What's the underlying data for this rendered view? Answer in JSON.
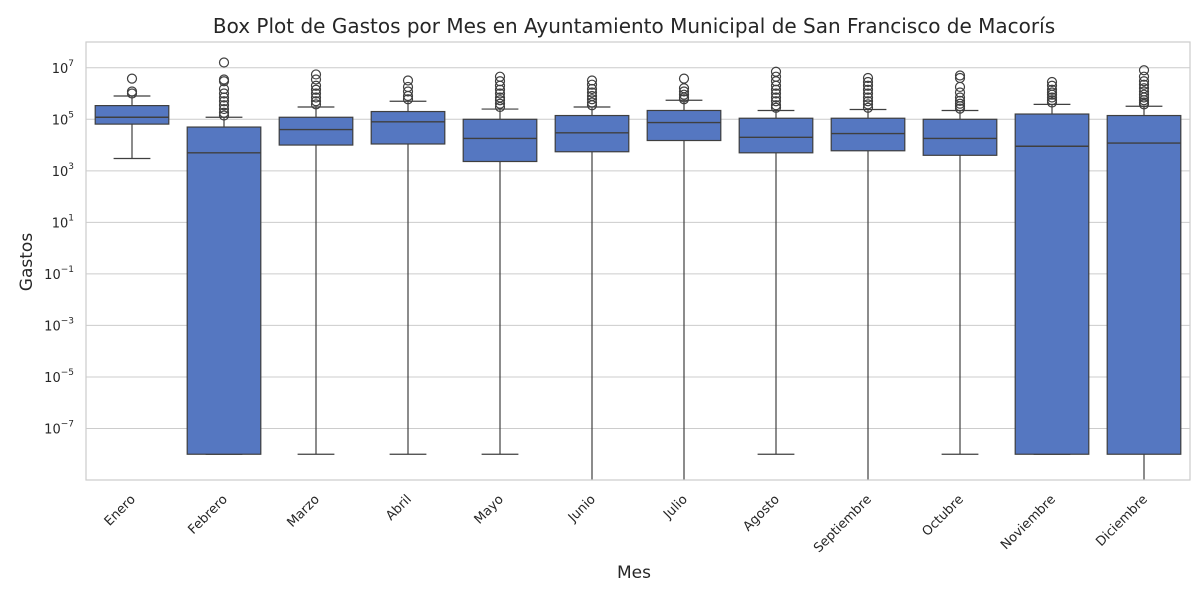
{
  "chart_data": {
    "type": "box",
    "title": "Box Plot de Gastos por Mes en Ayuntamiento Municipal de San Francisco de Macorís",
    "xlabel": "Mes",
    "ylabel": "Gastos",
    "yscale": "log",
    "ylim": [
      1e-09,
      100000000.0
    ],
    "yticks": [
      {
        "base": "10",
        "exp": "7",
        "value": 10000000.0
      },
      {
        "base": "10",
        "exp": "5",
        "value": 100000.0
      },
      {
        "base": "10",
        "exp": "3",
        "value": 1000.0
      },
      {
        "base": "10",
        "exp": "1",
        "value": 10.0
      },
      {
        "base": "10",
        "exp": "−1",
        "value": 0.1
      },
      {
        "base": "10",
        "exp": "−3",
        "value": 0.001
      },
      {
        "base": "10",
        "exp": "−5",
        "value": 1e-05
      },
      {
        "base": "10",
        "exp": "−7",
        "value": 1e-07
      }
    ],
    "grid": true,
    "box_color": "#5577c1",
    "categories": [
      "Enero",
      "Febrero",
      "Marzo",
      "Abril",
      "Mayo",
      "Junio",
      "Julio",
      "Agosto",
      "Septiembre",
      "Octubre",
      "Noviembre",
      "Diciembre"
    ],
    "boxes": [
      {
        "whislo": 3000,
        "q1": 65000,
        "med": 120000,
        "q3": 340000,
        "whishi": 800000,
        "fliers": [
          1000000,
          1200000,
          3800000
        ]
      },
      {
        "whislo": 1e-08,
        "q1": 1e-08,
        "med": 5000,
        "q3": 50000,
        "whishi": 120000,
        "fliers": [
          140000,
          180000,
          250000,
          350000,
          500000,
          700000,
          1000000,
          1500000,
          3000000,
          3500000,
          16000000
        ]
      },
      {
        "whislo": 1e-08,
        "q1": 10000,
        "med": 40000,
        "q3": 120000,
        "whishi": 300000,
        "fliers": [
          380000,
          500000,
          700000,
          1000000,
          1400000,
          2000000,
          3500000,
          5500000
        ]
      },
      {
        "whislo": 1e-08,
        "q1": 11000,
        "med": 80000,
        "q3": 200000,
        "whishi": 500000,
        "fliers": [
          600000,
          800000,
          1200000,
          1800000,
          3200000
        ]
      },
      {
        "whislo": 1e-08,
        "q1": 2300,
        "med": 18000,
        "q3": 100000,
        "whishi": 250000,
        "fliers": [
          300000,
          400000,
          550000,
          700000,
          1000000,
          1400000,
          2000000,
          3000000,
          4500000
        ]
      },
      {
        "whislo": 1e-09,
        "q1": 5500,
        "med": 30000,
        "q3": 140000,
        "whishi": 300000,
        "fliers": [
          350000,
          450000,
          600000,
          800000,
          1100000,
          1500000,
          2200000,
          3200000
        ]
      },
      {
        "whislo": 1e-09,
        "q1": 15000,
        "med": 75000,
        "q3": 220000,
        "whishi": 550000,
        "fliers": [
          600000,
          700000,
          900000,
          1200000,
          1600000,
          3800000
        ]
      },
      {
        "whislo": 1e-08,
        "q1": 5000,
        "med": 20000,
        "q3": 110000,
        "whishi": 220000,
        "fliers": [
          280000,
          350000,
          500000,
          700000,
          1000000,
          1400000,
          2000000,
          3000000,
          4500000,
          7000000
        ]
      },
      {
        "whislo": 1e-09,
        "q1": 6000,
        "med": 28000,
        "q3": 110000,
        "whishi": 240000,
        "fliers": [
          280000,
          380000,
          500000,
          700000,
          1000000,
          1400000,
          2000000,
          2800000,
          4000000
        ]
      },
      {
        "whislo": 1e-08,
        "q1": 4000,
        "med": 18000,
        "q3": 100000,
        "whishi": 220000,
        "fliers": [
          260000,
          320000,
          400000,
          520000,
          700000,
          1100000,
          1800000,
          4000000,
          5000000
        ]
      },
      {
        "whislo": 1e-08,
        "q1": 1e-08,
        "med": 9000,
        "q3": 160000,
        "whishi": 380000,
        "fliers": [
          450000,
          550000,
          700000,
          900000,
          1100000,
          1400000,
          2000000,
          2800000
        ]
      },
      {
        "whislo": 1e-09,
        "q1": 1e-08,
        "med": 12000,
        "q3": 140000,
        "whishi": 320000,
        "fliers": [
          380000,
          450000,
          550000,
          700000,
          900000,
          1200000,
          1600000,
          2200000,
          3000000,
          4500000,
          8000000
        ]
      }
    ]
  }
}
